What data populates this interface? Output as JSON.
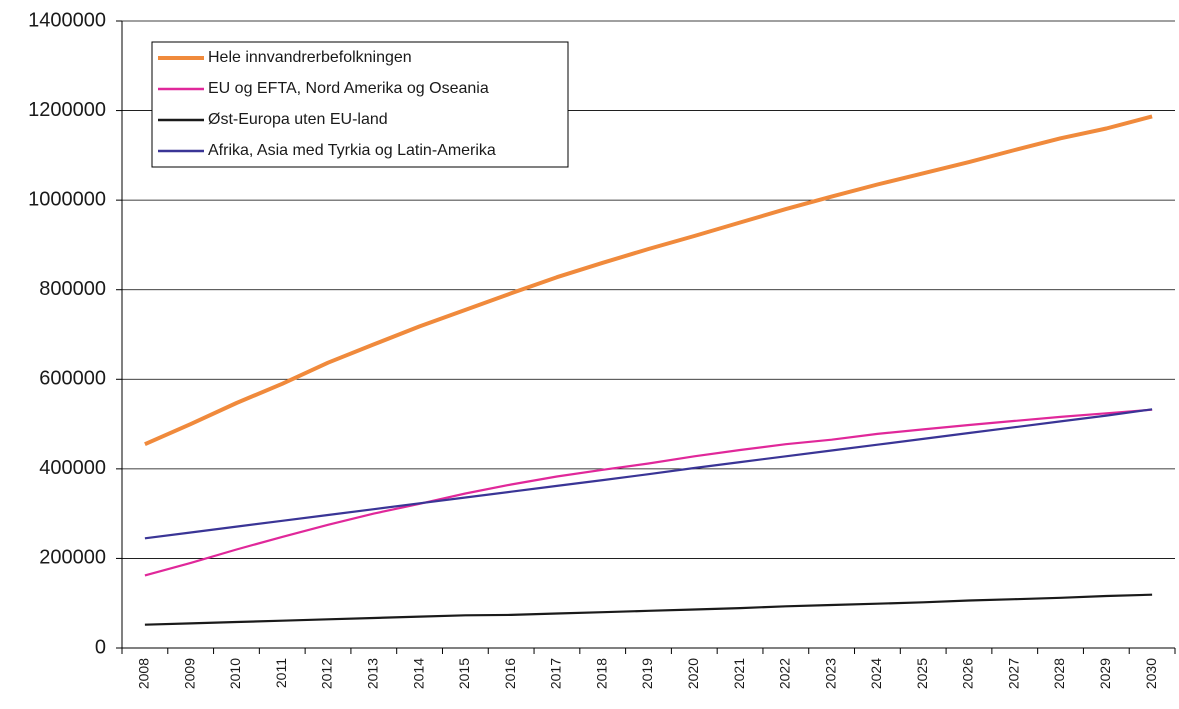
{
  "chart_data": {
    "type": "line",
    "categories": [
      "2008",
      "2009",
      "2010",
      "2011",
      "2012",
      "2013",
      "2014",
      "2015",
      "2016",
      "2017",
      "2018",
      "2019",
      "2020",
      "2021",
      "2022",
      "2023",
      "2024",
      "2025",
      "2026",
      "2027",
      "2028",
      "2029",
      "2030"
    ],
    "series": [
      {
        "name": "Hele innvandrerbefolkningen",
        "color": "#f08a3c",
        "values": [
          455000,
          500000,
          547000,
          590000,
          637000,
          678000,
          718000,
          755000,
          792000,
          828000,
          860000,
          891000,
          920000,
          950000,
          980000,
          1008000,
          1035000,
          1060000,
          1085000,
          1112000,
          1138000,
          1160000,
          1187000
        ]
      },
      {
        "name": "EU og EFTA, Nord Amerika og Oseania",
        "color": "#e0289a",
        "values": [
          162000,
          190000,
          220000,
          248000,
          275000,
          300000,
          322000,
          345000,
          365000,
          383000,
          398000,
          412000,
          428000,
          442000,
          455000,
          465000,
          478000,
          488000,
          498000,
          507000,
          516000,
          524000,
          532000
        ]
      },
      {
        "name": "Øst-Europa uten EU-land",
        "color": "#1a1a1a",
        "values": [
          52000,
          55000,
          58000,
          61000,
          64000,
          67000,
          70000,
          73000,
          74000,
          77000,
          80000,
          83000,
          86000,
          89000,
          93000,
          96000,
          99000,
          102000,
          106000,
          109000,
          112000,
          116000,
          119000
        ]
      },
      {
        "name": "Afrika, Asia med Tyrkia og Latin-Amerika",
        "color": "#3a3596",
        "values": [
          245000,
          258000,
          271000,
          284000,
          297000,
          310000,
          323000,
          336000,
          349000,
          362000,
          375000,
          388000,
          402000,
          415000,
          428000,
          441000,
          454000,
          467000,
          480000,
          493000,
          506000,
          519000,
          533000
        ]
      }
    ],
    "ylim": [
      0,
      1400000
    ],
    "yticks": [
      0,
      200000,
      400000,
      600000,
      800000,
      1000000,
      1200000,
      1400000
    ],
    "grid": true
  }
}
